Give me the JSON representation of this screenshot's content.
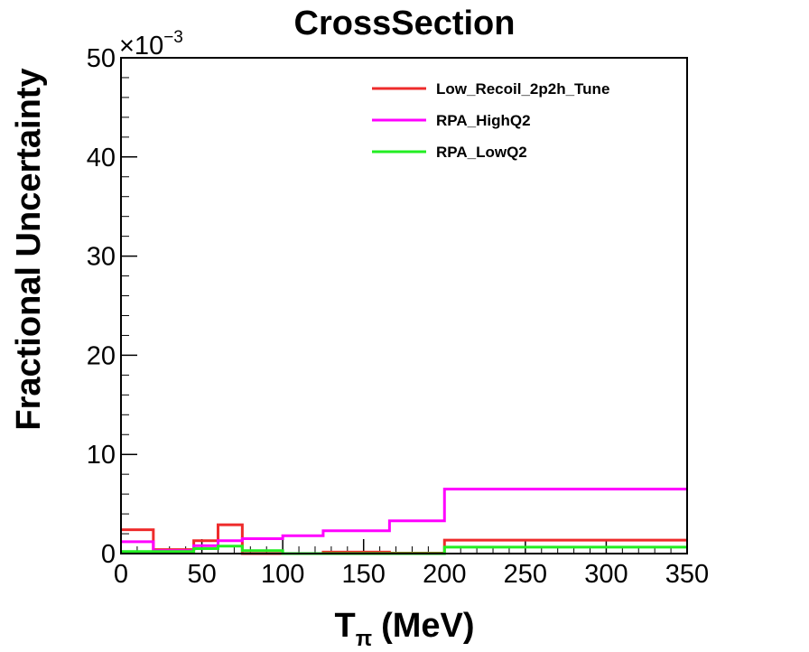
{
  "chart_data": {
    "type": "line",
    "title": "CrossSection",
    "xlabel": "T",
    "xlabel_subscript": "π",
    "xlabel_unit": "(MeV)",
    "ylabel": "Fractional Uncertainty",
    "yexponent_base": "×10",
    "yexponent_power": "−3",
    "xlim": [
      0,
      350
    ],
    "ylim": [
      0,
      50
    ],
    "xticks": [
      0,
      50,
      100,
      150,
      200,
      250,
      300,
      350
    ],
    "yticks": [
      0,
      10,
      20,
      30,
      40,
      50
    ],
    "yscale_note": "values in units of 1e-3",
    "bin_edges": [
      0,
      20,
      45,
      60,
      75,
      100,
      125,
      166,
      200,
      350
    ],
    "series": [
      {
        "name": "Low_Recoil_2p2h_Tune",
        "color": "#ee2b2b",
        "values": [
          2.4,
          0.4,
          1.3,
          2.9,
          0.0,
          0.0,
          0.15,
          0.05,
          1.35
        ]
      },
      {
        "name": "RPA_HighQ2",
        "color": "#ff00ff",
        "values": [
          1.2,
          0.3,
          0.8,
          1.3,
          1.5,
          1.8,
          2.3,
          3.3,
          6.5
        ]
      },
      {
        "name": "RPA_LowQ2",
        "color": "#22ee22",
        "values": [
          0.2,
          0.2,
          0.5,
          0.75,
          0.3,
          0.0,
          0.0,
          0.0,
          0.65
        ]
      }
    ],
    "legend_position": "top-right",
    "grid": false
  }
}
